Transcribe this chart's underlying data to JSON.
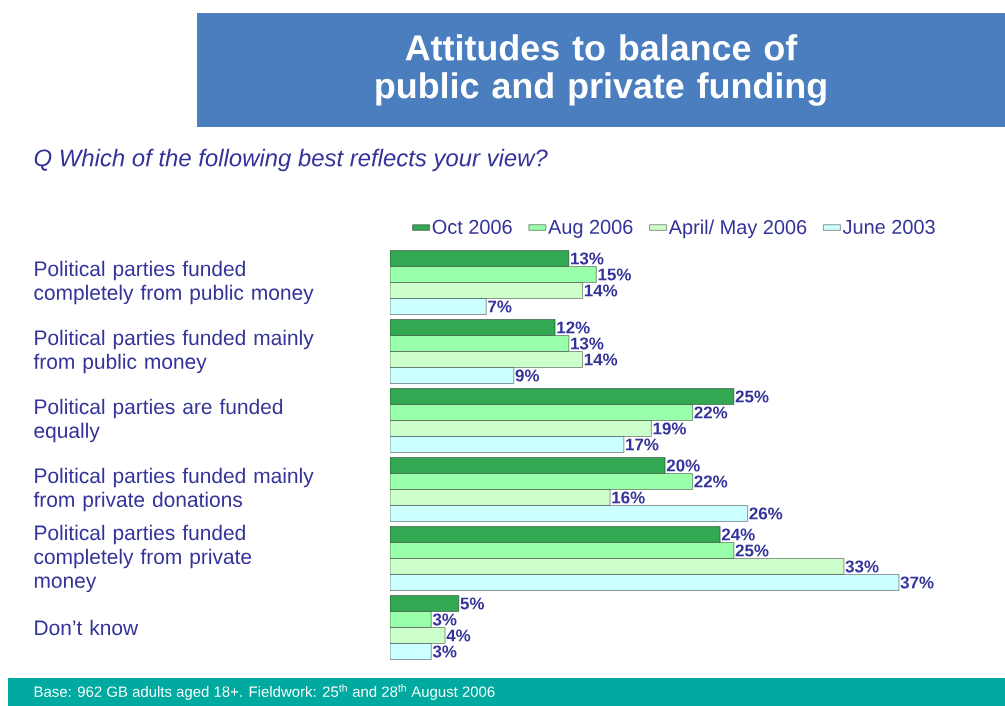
{
  "chart_data": {
    "type": "bar",
    "orientation": "horizontal",
    "title": "Attitudes to balance of public and private funding",
    "subtitle": "Q  Which of the following best reflects your view?",
    "categories": [
      "Political parties funded completely from public money",
      "Political parties funded mainly from public money",
      "Political parties are funded equally",
      "Political parties funded mainly from private donations",
      "Political parties funded completely from private money",
      "Don’t know"
    ],
    "series": [
      {
        "name": "Oct 2006",
        "color": "#33a853",
        "values": [
          13,
          12,
          25,
          20,
          24,
          5
        ],
        "value_labels": [
          "13%",
          "12%",
          "25%",
          "20%",
          "24%",
          "5%"
        ]
      },
      {
        "name": "Aug 2006",
        "color": "#99ffaa",
        "values": [
          15,
          13,
          22,
          22,
          25,
          3
        ],
        "value_labels": [
          "15%",
          "13%",
          "22%",
          "22%",
          "25%",
          "3%"
        ]
      },
      {
        "name": "April/ May 2006",
        "color": "#ccffcc",
        "values": [
          14,
          14,
          19,
          16,
          33,
          4
        ],
        "value_labels": [
          "14%",
          "14%",
          "19%",
          "16%",
          "33%",
          "4%"
        ]
      },
      {
        "name": "June 2003",
        "color": "#ccffff",
        "values": [
          7,
          9,
          17,
          26,
          37,
          3
        ],
        "value_labels": [
          "7%",
          "9%",
          "17%",
          "26%",
          "37%",
          "3%"
        ]
      }
    ],
    "legend": "top",
    "annotations": [
      "Base: 962 GB adults aged 18+.  Fieldwork: 25$^{th}$ and 28$^{th}$ August 2006"
    ]
  }
}
